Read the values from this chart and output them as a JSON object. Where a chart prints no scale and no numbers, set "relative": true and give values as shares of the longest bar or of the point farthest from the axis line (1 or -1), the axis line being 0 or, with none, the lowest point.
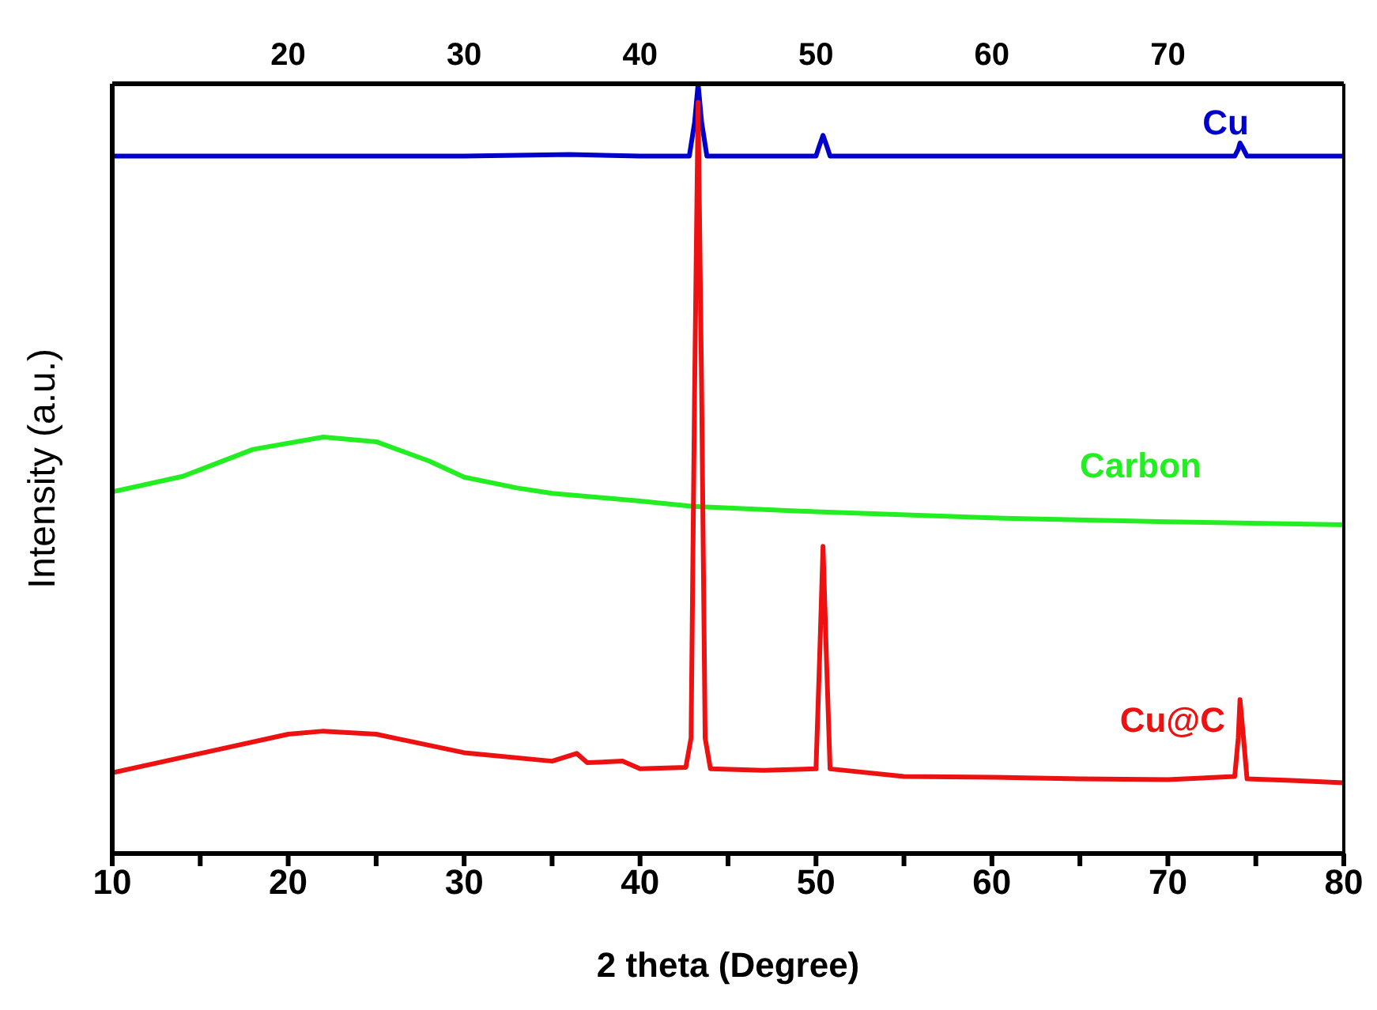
{
  "chart_data": {
    "type": "line",
    "relative": true,
    "xlabel": "2 theta (Degree)",
    "ylabel": "Intensity (a.u.)",
    "xlim": [
      10,
      80
    ],
    "xticks": [
      10,
      {
        "value": 15,
        "label": null
      },
      20,
      {
        "value": 25,
        "label": null
      },
      30,
      {
        "value": 35,
        "label": null
      },
      40,
      {
        "value": 45,
        "label": null
      },
      50,
      {
        "value": 55,
        "label": null
      },
      60,
      {
        "value": 65,
        "label": null
      },
      70,
      {
        "value": 75,
        "label": null
      },
      80
    ],
    "x2lim": [
      10,
      80
    ],
    "x2ticks": [
      20,
      30,
      40,
      50,
      60,
      70
    ],
    "marker": "none",
    "line_style": "solid",
    "series": [
      {
        "name": "Cu",
        "color": "#0000cc",
        "x": [
          10,
          20,
          30,
          36,
          40,
          42.8,
          43.1,
          43.3,
          43.5,
          43.8,
          50,
          50.2,
          50.4,
          50.6,
          50.8,
          60,
          73.8,
          74.0,
          74.1,
          74.3,
          74.5,
          80
        ],
        "values": [
          0.906,
          0.906,
          0.906,
          0.908,
          0.906,
          0.906,
          0.95,
          1,
          0.95,
          0.906,
          0.906,
          0.92,
          0.933,
          0.92,
          0.906,
          0.906,
          0.906,
          0.915,
          0.923,
          0.915,
          0.906,
          0.906
        ]
      },
      {
        "name": "Carbon",
        "color": "#22ee22",
        "x": [
          10,
          14,
          18,
          22,
          25,
          28,
          30,
          33,
          35,
          40,
          43,
          50,
          60,
          70,
          80
        ],
        "values": [
          0.47,
          0.49,
          0.525,
          0.541,
          0.535,
          0.51,
          0.489,
          0.475,
          0.468,
          0.458,
          0.451,
          0.444,
          0.436,
          0.431,
          0.427
        ]
      },
      {
        "name": "Cu@C",
        "color": "#ee1111",
        "x": [
          10,
          15,
          20,
          22,
          25,
          30,
          35,
          36.4,
          37,
          39,
          40,
          42.6,
          42.9,
          43.1,
          43.3,
          43.5,
          43.7,
          44,
          47,
          50,
          50.2,
          50.4,
          50.6,
          50.8,
          55,
          60,
          65,
          70,
          73.8,
          74.0,
          74.1,
          74.3,
          74.5,
          77,
          80
        ],
        "values": [
          0.105,
          0.13,
          0.155,
          0.159,
          0.155,
          0.131,
          0.12,
          0.13,
          0.118,
          0.12,
          0.11,
          0.112,
          0.15,
          0.6,
          0.976,
          0.6,
          0.15,
          0.11,
          0.108,
          0.11,
          0.25,
          0.399,
          0.25,
          0.11,
          0.1,
          0.099,
          0.097,
          0.096,
          0.1,
          0.15,
          0.2,
          0.15,
          0.097,
          0.095,
          0.092
        ]
      }
    ]
  }
}
